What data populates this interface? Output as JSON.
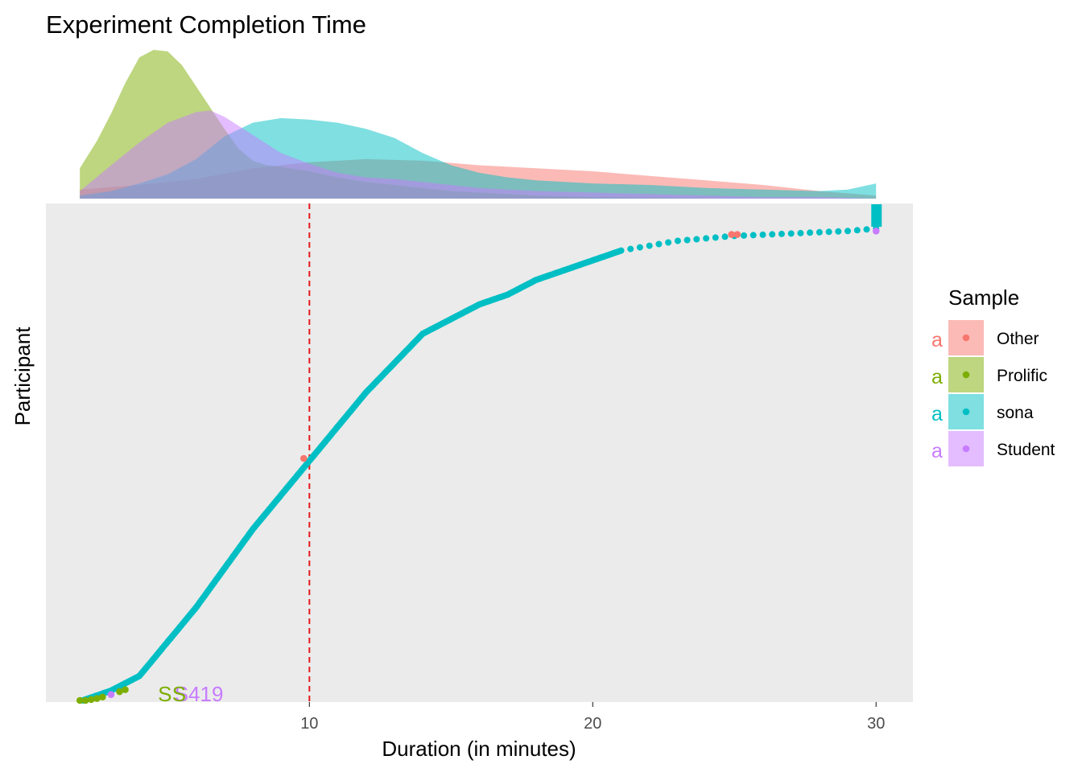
{
  "chart_data": {
    "type": "scatter",
    "title": "Experiment Completion Time",
    "xlabel": "Duration (in minutes)",
    "ylabel": "Participant",
    "xlim": [
      0.7,
      31.3
    ],
    "x_ticks": [
      10,
      20,
      30
    ],
    "x_tick_labels": [
      "10",
      "20",
      "30"
    ],
    "reference_line": {
      "x": 10,
      "color": "#e41a1c",
      "style": "dashed"
    },
    "legend": {
      "title": "Sample",
      "position": "right",
      "key_letter": "a",
      "entries": [
        {
          "name": "Other",
          "color": "#F8766D"
        },
        {
          "name": "Prolific",
          "color": "#7CAE00"
        },
        {
          "name": "sona",
          "color": "#00BFC4"
        },
        {
          "name": "Student",
          "color": "#C77CFF"
        }
      ]
    },
    "cumulative_curve": {
      "series": "sona",
      "points": [
        [
          2,
          0.0
        ],
        [
          3,
          0.02
        ],
        [
          4,
          0.05
        ],
        [
          5,
          0.12
        ],
        [
          6,
          0.19
        ],
        [
          7,
          0.27
        ],
        [
          8,
          0.35
        ],
        [
          9,
          0.42
        ],
        [
          10,
          0.49
        ],
        [
          11,
          0.56
        ],
        [
          12,
          0.63
        ],
        [
          13,
          0.69
        ],
        [
          14,
          0.75
        ],
        [
          15,
          0.78
        ],
        [
          16,
          0.81
        ],
        [
          17,
          0.83
        ],
        [
          18,
          0.86
        ],
        [
          19,
          0.88
        ],
        [
          20,
          0.9
        ],
        [
          21,
          0.92
        ],
        [
          22,
          0.93
        ],
        [
          23,
          0.94
        ],
        [
          24,
          0.945
        ],
        [
          25,
          0.95
        ],
        [
          27,
          0.955
        ],
        [
          29,
          0.96
        ],
        [
          30,
          0.965
        ]
      ]
    },
    "marked_points": [
      {
        "series": "Other",
        "x": 9.8,
        "y": 0.495
      },
      {
        "series": "Other",
        "x": 24.9,
        "y": 0.953
      },
      {
        "series": "Other",
        "x": 25.1,
        "y": 0.953
      },
      {
        "series": "Student",
        "x": 3.0,
        "y": 0.012
      },
      {
        "series": "Student",
        "x": 30,
        "y": 0.96
      },
      {
        "series": "Prolific",
        "x": 1.9,
        "y": 0.0
      },
      {
        "series": "Prolific",
        "x": 2.1,
        "y": 0.0
      },
      {
        "series": "Prolific",
        "x": 2.3,
        "y": 0.002
      },
      {
        "series": "Prolific",
        "x": 2.5,
        "y": 0.004
      },
      {
        "series": "Prolific",
        "x": 2.7,
        "y": 0.007
      },
      {
        "series": "Prolific",
        "x": 3.3,
        "y": 0.018
      },
      {
        "series": "Prolific",
        "x": 3.5,
        "y": 0.022
      }
    ],
    "point_labels": [
      {
        "text": "S419",
        "series": "Student",
        "x": 6.1,
        "y": 0.02
      },
      {
        "text": "S",
        "series": "Prolific",
        "x": 4.9,
        "y": 0.02
      },
      {
        "text": "S",
        "series": "Prolific",
        "x": 5.4,
        "y": 0.02
      }
    ],
    "density": {
      "Other": {
        "x": [
          1.9,
          4,
          6,
          8,
          10,
          12,
          14,
          16,
          18,
          20,
          22,
          24,
          26,
          28,
          30
        ],
        "y": [
          0.06,
          0.09,
          0.13,
          0.2,
          0.24,
          0.26,
          0.25,
          0.22,
          0.2,
          0.18,
          0.15,
          0.12,
          0.09,
          0.05,
          0.02
        ]
      },
      "Prolific": {
        "x": [
          1.9,
          2.5,
          3,
          3.5,
          4,
          4.5,
          5,
          5.5,
          6,
          6.5,
          7,
          7.5,
          8,
          8.5,
          9,
          10,
          11,
          12,
          13,
          14,
          15,
          16,
          18,
          20,
          25,
          30
        ],
        "y": [
          0.2,
          0.38,
          0.56,
          0.76,
          0.93,
          0.98,
          0.97,
          0.88,
          0.74,
          0.6,
          0.46,
          0.33,
          0.25,
          0.22,
          0.21,
          0.18,
          0.14,
          0.11,
          0.09,
          0.07,
          0.05,
          0.04,
          0.02,
          0.01,
          0.0,
          0.0
        ]
      },
      "sona": {
        "x": [
          1.9,
          3,
          4,
          5,
          6,
          7,
          8,
          9,
          10,
          11,
          12,
          13,
          14,
          15,
          16,
          17,
          18,
          20,
          22,
          24,
          26,
          28,
          29,
          30
        ],
        "y": [
          0.02,
          0.05,
          0.1,
          0.16,
          0.26,
          0.41,
          0.5,
          0.53,
          0.52,
          0.5,
          0.46,
          0.4,
          0.3,
          0.22,
          0.17,
          0.14,
          0.12,
          0.1,
          0.09,
          0.07,
          0.06,
          0.05,
          0.06,
          0.1
        ]
      },
      "Student": {
        "x": [
          1.9,
          3,
          4,
          5,
          6,
          6.5,
          7,
          8,
          9,
          10,
          11,
          12,
          13,
          14,
          15,
          16,
          18,
          20,
          22,
          24,
          26,
          28,
          30
        ],
        "y": [
          0.05,
          0.22,
          0.37,
          0.5,
          0.57,
          0.58,
          0.54,
          0.42,
          0.3,
          0.23,
          0.17,
          0.14,
          0.13,
          0.11,
          0.09,
          0.07,
          0.05,
          0.04,
          0.03,
          0.02,
          0.01,
          0.01,
          0.0
        ]
      }
    }
  }
}
